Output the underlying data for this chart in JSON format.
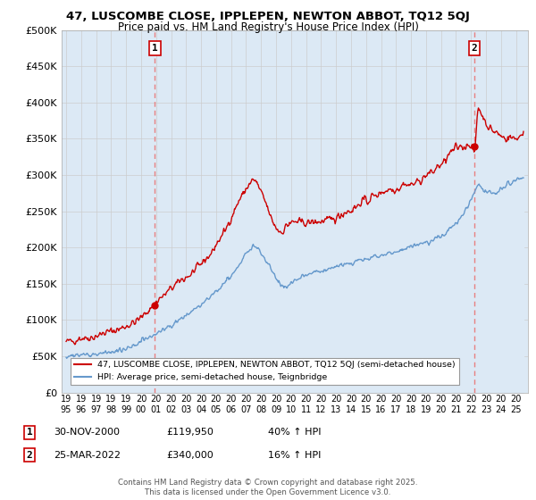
{
  "title1": "47, LUSCOMBE CLOSE, IPPLEPEN, NEWTON ABBOT, TQ12 5QJ",
  "title2": "Price paid vs. HM Land Registry's House Price Index (HPI)",
  "ylabel_ticks": [
    "£0",
    "£50K",
    "£100K",
    "£150K",
    "£200K",
    "£250K",
    "£300K",
    "£350K",
    "£400K",
    "£450K",
    "£500K"
  ],
  "ytick_vals": [
    0,
    50000,
    100000,
    150000,
    200000,
    250000,
    300000,
    350000,
    400000,
    450000,
    500000
  ],
  "xlim_start": 1994.7,
  "xlim_end": 2025.8,
  "ylim": [
    0,
    500000
  ],
  "legend_line1": "47, LUSCOMBE CLOSE, IPPLEPEN, NEWTON ABBOT, TQ12 5QJ (semi-detached house)",
  "legend_line2": "HPI: Average price, semi-detached house, Teignbridge",
  "sale1_label": "1",
  "sale1_date": "30-NOV-2000",
  "sale1_price": "£119,950",
  "sale1_hpi": "40% ↑ HPI",
  "sale1_year": 2000.92,
  "sale1_price_val": 119950,
  "sale2_label": "2",
  "sale2_date": "25-MAR-2022",
  "sale2_price": "£340,000",
  "sale2_hpi": "16% ↑ HPI",
  "sale2_year": 2022.23,
  "sale2_price_val": 340000,
  "footnote": "Contains HM Land Registry data © Crown copyright and database right 2025.\nThis data is licensed under the Open Government Licence v3.0.",
  "line_color_red": "#cc0000",
  "line_color_blue": "#6699cc",
  "fill_color_blue": "#dce9f5",
  "vline_color": "#e88080",
  "bg_color": "#ffffff",
  "grid_color": "#cccccc",
  "plot_bg": "#dce9f5"
}
